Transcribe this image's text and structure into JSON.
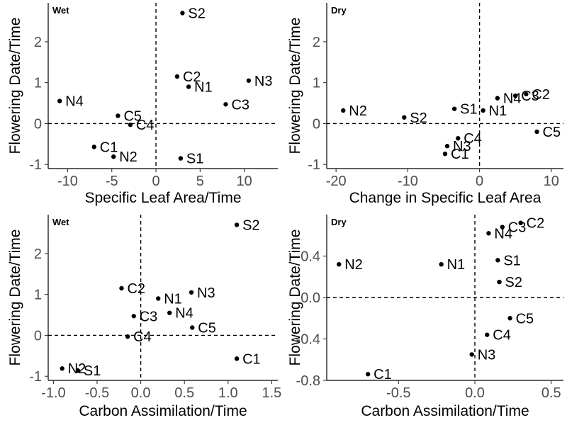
{
  "chart_data": [
    {
      "type": "scatter",
      "title": "Wet",
      "xlabel": "Specific Leaf Area/Time",
      "ylabel": "Flowering Date/Time",
      "xlim": [
        -12.2,
        13.8
      ],
      "ylim": [
        -1.1,
        2.95
      ],
      "xticks": [
        -10,
        -5,
        0,
        5,
        10
      ],
      "yticks": [
        -1,
        0,
        1,
        2
      ],
      "reference_lines": {
        "x": 0,
        "y": 0
      },
      "grid": false,
      "points": [
        {
          "label": "S2",
          "x": 3.0,
          "y": 2.7
        },
        {
          "label": "C2",
          "x": 2.4,
          "y": 1.15
        },
        {
          "label": "N3",
          "x": 10.5,
          "y": 1.05
        },
        {
          "label": "N1",
          "x": 3.7,
          "y": 0.9
        },
        {
          "label": "N4",
          "x": -10.9,
          "y": 0.55
        },
        {
          "label": "C3",
          "x": 7.9,
          "y": 0.47
        },
        {
          "label": "C5",
          "x": -4.3,
          "y": 0.19
        },
        {
          "label": "C4",
          "x": -2.9,
          "y": -0.03
        },
        {
          "label": "C1",
          "x": -7.0,
          "y": -0.57
        },
        {
          "label": "N2",
          "x": -4.8,
          "y": -0.81
        },
        {
          "label": "S1",
          "x": 2.8,
          "y": -0.85
        }
      ]
    },
    {
      "type": "scatter",
      "title": "Dry",
      "xlabel": "Change in Specific Leaf Area",
      "ylabel": "Flowering Date/Time",
      "xlim": [
        -21.3,
        11.7
      ],
      "ylim": [
        -1.1,
        2.95
      ],
      "xticks": [
        -20,
        -10,
        0,
        10
      ],
      "yticks": [
        -1,
        0,
        1,
        2
      ],
      "reference_lines": {
        "x": 0,
        "y": 0
      },
      "grid": false,
      "points": [
        {
          "label": "C2",
          "x": 6.5,
          "y": 0.72
        },
        {
          "label": "C3",
          "x": 5.0,
          "y": 0.68
        },
        {
          "label": "N4",
          "x": 2.5,
          "y": 0.62
        },
        {
          "label": "N2",
          "x": -19.0,
          "y": 0.32
        },
        {
          "label": "S2",
          "x": -10.5,
          "y": 0.15
        },
        {
          "label": "S1",
          "x": -3.5,
          "y": 0.36
        },
        {
          "label": "N1",
          "x": 0.5,
          "y": 0.32
        },
        {
          "label": "C5",
          "x": 8.0,
          "y": -0.2
        },
        {
          "label": "C4",
          "x": -3.0,
          "y": -0.36
        },
        {
          "label": "N3",
          "x": -4.5,
          "y": -0.55
        },
        {
          "label": "C1",
          "x": -4.8,
          "y": -0.74
        }
      ]
    },
    {
      "type": "scatter",
      "title": "Wet",
      "xlabel": "Carbon Assimilation/Time",
      "ylabel": "Flowering Date/Time",
      "xlim": [
        -1.06,
        1.57
      ],
      "ylim": [
        -1.1,
        2.95
      ],
      "xticks": [
        -1.0,
        -0.5,
        0.0,
        0.5,
        1.0,
        1.5
      ],
      "xtick_labels": [
        "-1.0",
        "-0.5",
        "0.0",
        "0.5",
        "1.0",
        "1.5"
      ],
      "yticks": [
        -1,
        0,
        1,
        2
      ],
      "reference_lines": {
        "x": 0,
        "y": 0
      },
      "grid": false,
      "points": [
        {
          "label": "S2",
          "x": 1.1,
          "y": 2.7
        },
        {
          "label": "C2",
          "x": -0.22,
          "y": 1.15
        },
        {
          "label": "N3",
          "x": 0.58,
          "y": 1.05
        },
        {
          "label": "N1",
          "x": 0.2,
          "y": 0.9
        },
        {
          "label": "N4",
          "x": 0.33,
          "y": 0.55
        },
        {
          "label": "C3",
          "x": -0.08,
          "y": 0.47
        },
        {
          "label": "C5",
          "x": 0.59,
          "y": 0.19
        },
        {
          "label": "C4",
          "x": -0.15,
          "y": -0.03
        },
        {
          "label": "C1",
          "x": 1.1,
          "y": -0.57
        },
        {
          "label": "N2",
          "x": -0.9,
          "y": -0.81
        },
        {
          "label": "S1",
          "x": -0.72,
          "y": -0.86
        }
      ]
    },
    {
      "type": "scatter",
      "title": "Dry",
      "xlabel": "Carbon Assimilation/Time",
      "ylabel": "Flowering Date/Time",
      "xlim": [
        -0.97,
        0.58
      ],
      "ylim": [
        -0.8,
        0.8
      ],
      "xticks": [
        -0.5,
        0.0,
        0.5
      ],
      "xtick_labels": [
        "-0.5",
        "0.0",
        "0.5"
      ],
      "yticks": [
        -0.8,
        -0.4,
        0.0,
        0.4
      ],
      "ytick_labels": [
        "-0.8",
        "-0.4",
        "0.0",
        "0.4"
      ],
      "reference_lines": {
        "x": 0,
        "y": 0
      },
      "grid": false,
      "points": [
        {
          "label": "C2",
          "x": 0.3,
          "y": 0.72
        },
        {
          "label": "C3",
          "x": 0.18,
          "y": 0.68
        },
        {
          "label": "N4",
          "x": 0.09,
          "y": 0.62
        },
        {
          "label": "N2",
          "x": -0.89,
          "y": 0.32
        },
        {
          "label": "N1",
          "x": -0.22,
          "y": 0.32
        },
        {
          "label": "S1",
          "x": 0.15,
          "y": 0.36
        },
        {
          "label": "S2",
          "x": 0.16,
          "y": 0.15
        },
        {
          "label": "C5",
          "x": 0.23,
          "y": -0.2
        },
        {
          "label": "C4",
          "x": 0.08,
          "y": -0.36
        },
        {
          "label": "N3",
          "x": -0.02,
          "y": -0.55
        },
        {
          "label": "C1",
          "x": -0.7,
          "y": -0.74
        }
      ]
    }
  ]
}
